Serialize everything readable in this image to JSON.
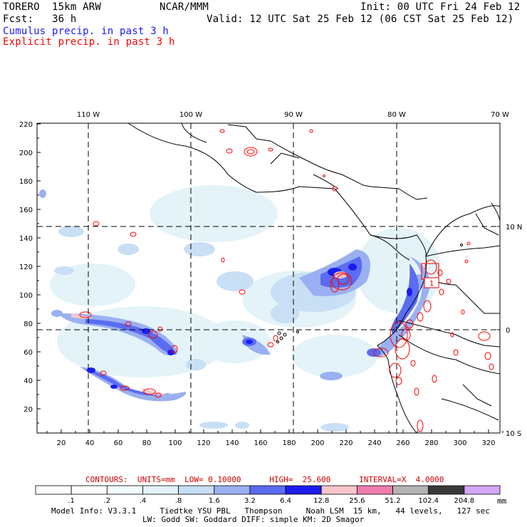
{
  "header": {
    "model": "TORERO  15km ARW",
    "org": "NCAR/MMM",
    "init": "Init: 00 UTC Fri 24 Feb 12",
    "fcst": "Fcst:   36 h",
    "valid": "Valid: 12 UTC Sat 25 Feb 12 (06 CST Sat 25 Feb 12)",
    "field1": "Cumulus precip. in past 3 h",
    "field2": "Explicit precip. in past 3 h",
    "field1_color": "#1a1aff",
    "field2_color": "#ff0000"
  },
  "map": {
    "lon_labels": [
      "110 W",
      "100 W",
      "90 W",
      "80 W",
      "70 W"
    ],
    "lat_labels": [
      "10 N",
      "0",
      "10 S"
    ],
    "x_ticks": [
      "20",
      "40",
      "60",
      "80",
      "100",
      "120",
      "140",
      "160",
      "180",
      "200",
      "220",
      "240",
      "260",
      "280",
      "300",
      "320"
    ],
    "y_ticks": [
      "20",
      "40",
      "60",
      "80",
      "100",
      "120",
      "140",
      "160",
      "180",
      "200",
      "220"
    ],
    "box_label": "1"
  },
  "contours": {
    "label": "CONTOURS:  UNITS=mm  LOW= 0.10000      HIGH=  25.600      INTERVAL=X  4.0000",
    "color": "#cc0000"
  },
  "colorbar": {
    "unit": "mm",
    "labels": [
      ".1",
      ".2",
      ".4",
      ".8",
      "1.6",
      "3.2",
      "6.4",
      "12.8",
      "25.6",
      "51.2",
      "102.4",
      "204.8"
    ],
    "colors": [
      "#ffffff",
      "#ffffff",
      "#f2fbfd",
      "#e3f3f8",
      "#c8dff5",
      "#9ab0f2",
      "#5a6cf0",
      "#1c1cf0",
      "#f8c7cc",
      "#f07cae",
      "#b3b3b3",
      "#3a3a3a",
      "#d6a6f7"
    ]
  },
  "footer": {
    "line1": "Model Info: V3.3.1     Tiedtke YSU PBL   Thompson     Noah LSM  15 km,   44 levels,   127 sec",
    "line2": "LW: Godd SW: Goddard DIFF: simple KM: 2D Smagor"
  }
}
